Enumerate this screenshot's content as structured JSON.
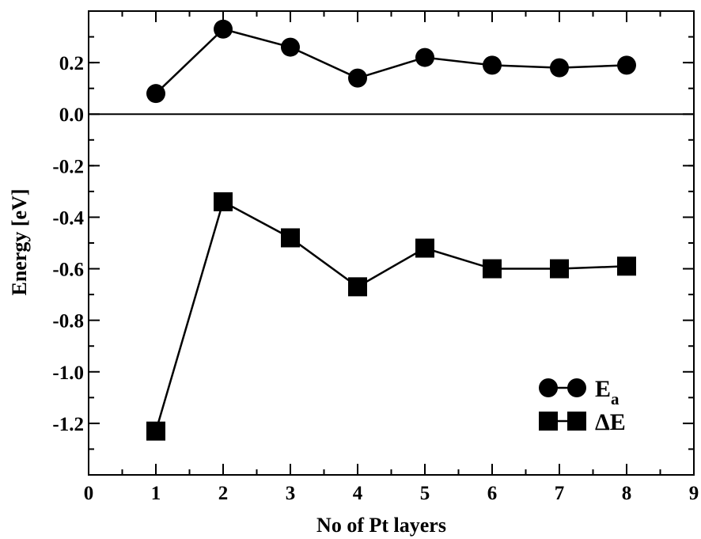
{
  "chart_data": {
    "type": "line",
    "title": "",
    "xlabel": "No of Pt layers",
    "ylabel": "Energy [eV]",
    "xlim": [
      0,
      9
    ],
    "ylim": [
      -1.4,
      0.4
    ],
    "x_ticks": [
      0,
      1,
      2,
      3,
      4,
      5,
      6,
      7,
      8,
      9
    ],
    "y_ticks": [
      -1.2,
      -1.0,
      -0.8,
      -0.6,
      -0.4,
      -0.2,
      0.0,
      0.2
    ],
    "y_tick_labels": [
      "-1.2",
      "-1.0",
      "-0.8",
      "-0.6",
      "-0.4",
      "-0.2",
      "0.0",
      "0.2"
    ],
    "grid": false,
    "zero_line": true,
    "legend_position": "lower-right",
    "series": [
      {
        "name": "E_a",
        "legend_main": "E",
        "legend_sub": "a",
        "marker": "circle",
        "color": "#000000",
        "x": [
          1,
          2,
          3,
          4,
          5,
          6,
          7,
          8
        ],
        "y": [
          0.08,
          0.33,
          0.26,
          0.14,
          0.22,
          0.19,
          0.18,
          0.19
        ]
      },
      {
        "name": "ΔE",
        "legend_main": "ΔE",
        "legend_sub": "",
        "marker": "square",
        "color": "#000000",
        "x": [
          1,
          2,
          3,
          4,
          5,
          6,
          7,
          8
        ],
        "y": [
          -1.23,
          -0.34,
          -0.48,
          -0.67,
          -0.52,
          -0.6,
          -0.6,
          -0.59
        ]
      }
    ]
  }
}
